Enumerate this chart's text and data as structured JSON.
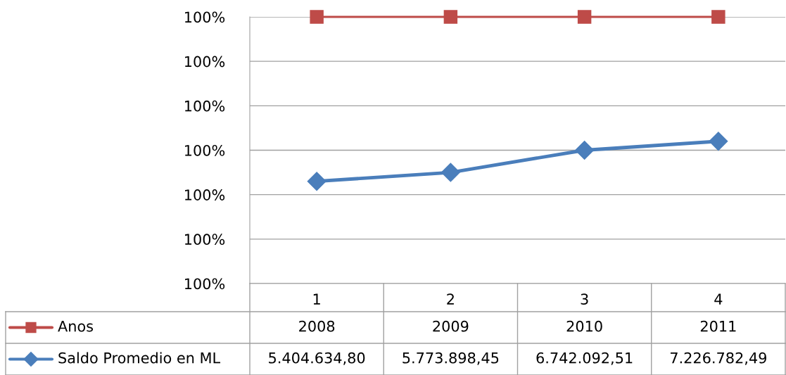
{
  "chart_data": {
    "type": "line",
    "categories": [
      "1",
      "2",
      "3",
      "4"
    ],
    "series": [
      {
        "name": "Anos",
        "color": "#be4b48",
        "marker": "square",
        "values": [
          100.0,
          100.0,
          100.0,
          100.0
        ]
      },
      {
        "name": "Saldo Promedio en ML",
        "color": "#4a7ebb",
        "marker": "diamond",
        "values": [
          99.963,
          99.965,
          99.97,
          99.972
        ]
      }
    ],
    "annotations": [
      "2008",
      "2009",
      "2010",
      "2011",
      "5.404.634,80",
      "5.773.898,45",
      "6.742.092,51",
      "7.226.782,49"
    ],
    "ylim": [
      99.94,
      100.0
    ],
    "yticks": [
      {
        "value": 99.94,
        "label": "100%"
      },
      {
        "value": 99.95,
        "label": "100%"
      },
      {
        "value": 99.96,
        "label": "100%"
      },
      {
        "value": 99.97,
        "label": "100%"
      },
      {
        "value": 99.98,
        "label": "100%"
      },
      {
        "value": 99.99,
        "label": "100%"
      },
      {
        "value": 100.0,
        "label": "100%"
      }
    ],
    "grid": "y",
    "legend": "bottom",
    "line_style": "solid"
  }
}
